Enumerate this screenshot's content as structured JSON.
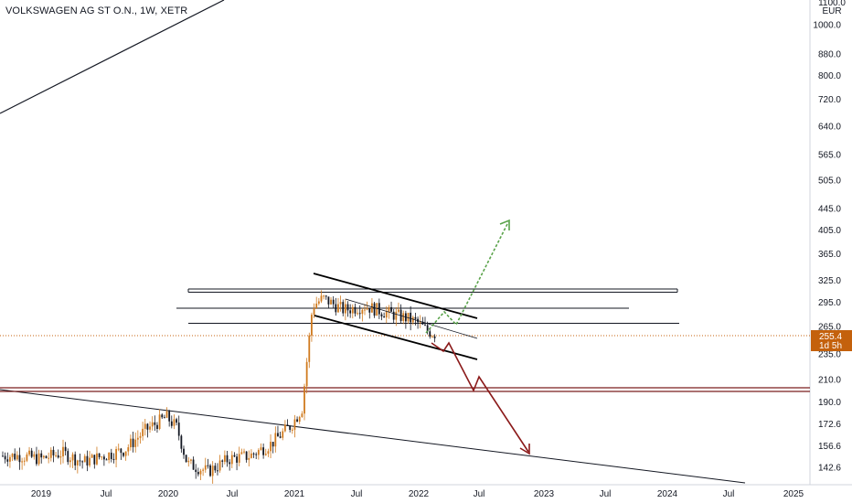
{
  "header": {
    "symbol_line": "VOLKSWAGEN AG ST O.N., 1W, XETR"
  },
  "price_axis": {
    "currency": "EUR",
    "top_partial": "1100.0"
  },
  "price_tag": {
    "price": "255.4",
    "countdown": "1d 5h"
  },
  "colors": {
    "up_candle": "#d07a1e",
    "down_candle": "#131722",
    "channel": "#000000",
    "bull_arrow": "#5aa34a",
    "bear_arrow": "#8b1a1a",
    "support_line": "#7a1f1f",
    "price_tag": "#c4610c"
  },
  "chart_data": {
    "type": "candlestick",
    "title": "VOLKSWAGEN AG ST O.N., 1W, XETR",
    "scale": "log",
    "y_ticks": [
      1000.0,
      880.0,
      800.0,
      720.0,
      640.0,
      565.0,
      505.0,
      445.0,
      405.0,
      365.0,
      325.0,
      295.0,
      265.0,
      235.0,
      210.0,
      190.0,
      172.6,
      156.6,
      142.6
    ],
    "x_ticks": [
      "2019",
      "Jul",
      "2020",
      "Jul",
      "2021",
      "Jul",
      "2022",
      "Jul",
      "2023",
      "Jul",
      "2024",
      "Jul",
      "2025"
    ],
    "last_price": 255.4,
    "horizontal_levels": [
      312,
      290,
      270,
      203,
      201
    ],
    "price_series": [
      {
        "x": "2018-11",
        "y": 150
      },
      {
        "x": "2019-01",
        "y": 148
      },
      {
        "x": "2019-03",
        "y": 152
      },
      {
        "x": "2019-05",
        "y": 146
      },
      {
        "x": "2019-07",
        "y": 150
      },
      {
        "x": "2019-09",
        "y": 154
      },
      {
        "x": "2019-11",
        "y": 168
      },
      {
        "x": "2020-01",
        "y": 178
      },
      {
        "x": "2020-02",
        "y": 170
      },
      {
        "x": "2020-03",
        "y": 145
      },
      {
        "x": "2020-05",
        "y": 140
      },
      {
        "x": "2020-07",
        "y": 148
      },
      {
        "x": "2020-09",
        "y": 150
      },
      {
        "x": "2020-11",
        "y": 158
      },
      {
        "x": "2021-01",
        "y": 172
      },
      {
        "x": "2021-02",
        "y": 185
      },
      {
        "x": "2021-03",
        "y": 290
      },
      {
        "x": "2021-04",
        "y": 300
      },
      {
        "x": "2021-06",
        "y": 285
      },
      {
        "x": "2021-08",
        "y": 290
      },
      {
        "x": "2021-10",
        "y": 282
      },
      {
        "x": "2021-12",
        "y": 275
      },
      {
        "x": "2022-01",
        "y": 270
      },
      {
        "x": "2022-02",
        "y": 260
      },
      {
        "x": "2022-03",
        "y": 255.4
      }
    ]
  }
}
